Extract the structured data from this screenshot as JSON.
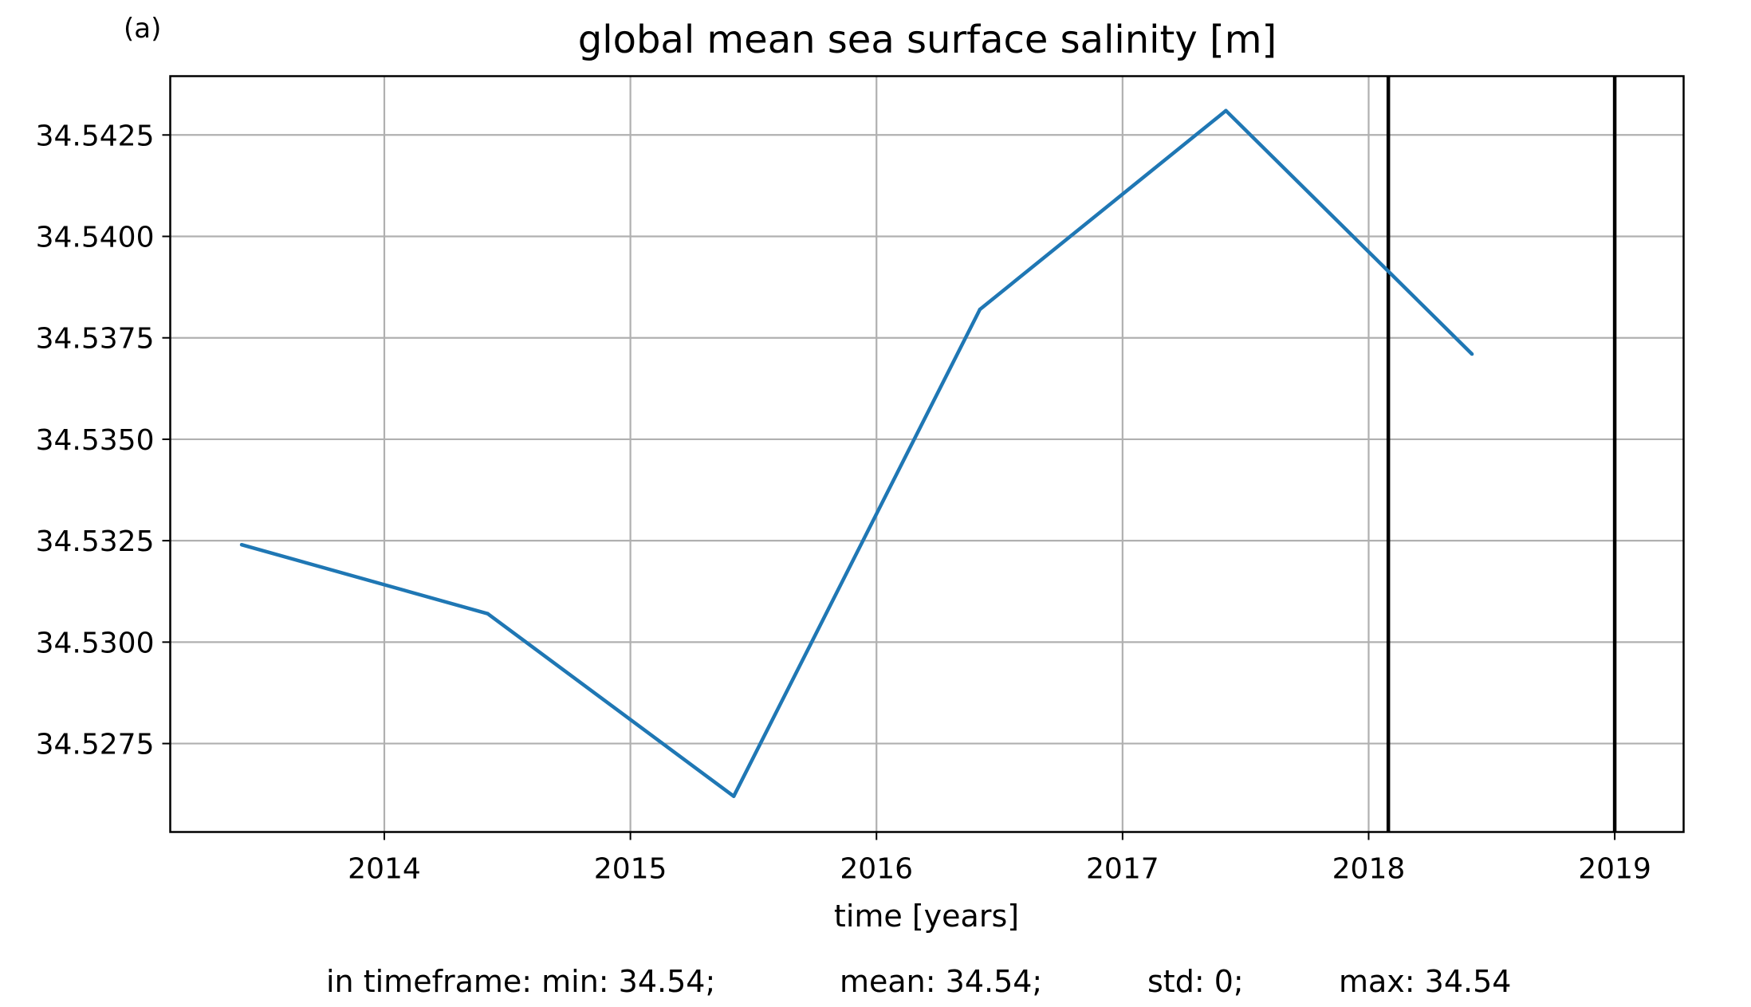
{
  "panel_label": "(a)",
  "chart_data": {
    "type": "line",
    "title": "global mean sea surface salinity [m]",
    "xlabel": "time [years]",
    "ylabel": "",
    "xlim": [
      2013.13,
      2019.28
    ],
    "ylim": [
      34.52532,
      34.54395
    ],
    "x_ticks": [
      2014,
      2015,
      2016,
      2017,
      2018,
      2019
    ],
    "x_tick_labels": [
      "2014",
      "2015",
      "2016",
      "2017",
      "2018",
      "2019"
    ],
    "y_ticks": [
      34.5275,
      34.53,
      34.5325,
      34.535,
      34.5375,
      34.54,
      34.5425
    ],
    "y_tick_labels": [
      "34.5275",
      "34.5300",
      "34.5325",
      "34.5350",
      "34.5375",
      "34.5400",
      "34.5425"
    ],
    "grid": true,
    "series": [
      {
        "color": "#1f77b4",
        "points": [
          {
            "x": 2013.42,
            "y": 34.5324
          },
          {
            "x": 2014.42,
            "y": 34.5307
          },
          {
            "x": 2015.42,
            "y": 34.5262
          },
          {
            "x": 2016.42,
            "y": 34.5382
          },
          {
            "x": 2017.42,
            "y": 34.5431
          },
          {
            "x": 2018.42,
            "y": 34.5371
          }
        ]
      }
    ],
    "vertical_lines": [
      {
        "x": 2018.08,
        "color": "#000000"
      },
      {
        "x": 2019.0,
        "color": "#000000"
      }
    ]
  },
  "footer": {
    "min": "in timeframe: min: 34.54;",
    "mean": "mean: 34.54;",
    "std": "std: 0;",
    "max": "max: 34.54"
  }
}
